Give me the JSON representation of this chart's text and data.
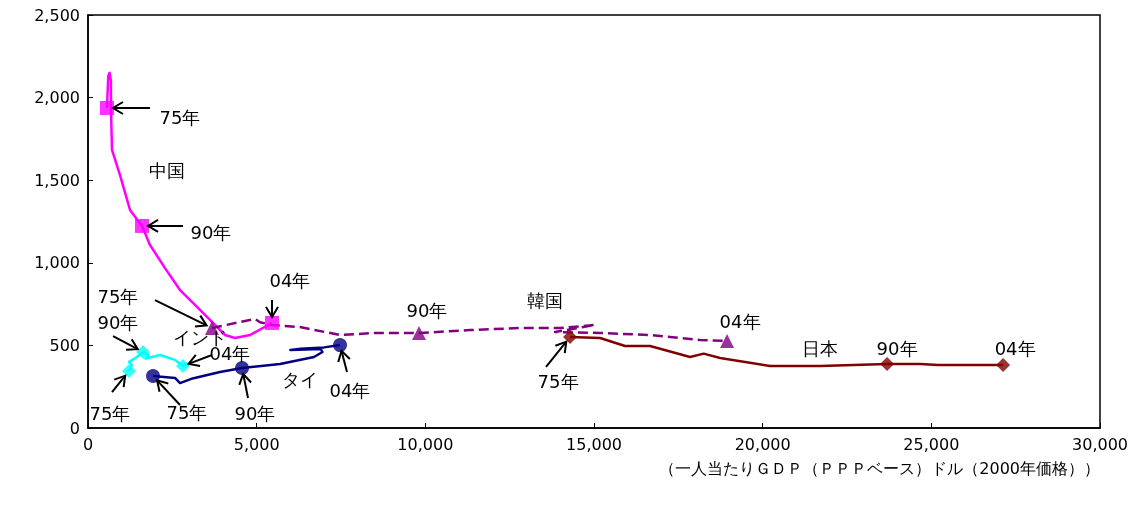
{
  "chart_data": {
    "type": "line",
    "xlabel": "（一人当たりＧＤＰ（ＰＰＰベース）ドル（2000年価格））",
    "xlim": [
      0,
      30000
    ],
    "ylim": [
      0,
      2500
    ],
    "xticks": [
      {
        "value": 0,
        "label": "0"
      },
      {
        "value": 5000,
        "label": "5,000"
      },
      {
        "value": 10000,
        "label": "10,000"
      },
      {
        "value": 15000,
        "label": "15,000"
      },
      {
        "value": 20000,
        "label": "20,000"
      },
      {
        "value": 25000,
        "label": "25,000"
      },
      {
        "value": 30000,
        "label": "30,000"
      }
    ],
    "yticks": [
      {
        "value": 0,
        "label": "0"
      },
      {
        "value": 500,
        "label": "500"
      },
      {
        "value": 1000,
        "label": "1,000"
      },
      {
        "value": 1500,
        "label": "1,500"
      },
      {
        "value": 2000,
        "label": "2,000"
      },
      {
        "value": 2500,
        "label": "2,500"
      }
    ],
    "grid": false,
    "series": [
      {
        "color": "#ff00ff",
        "line_style": "solid",
        "x": [
          563,
          600,
          640,
          680,
          680,
          711,
          949,
          1245,
          1601,
          1838,
          2283,
          2728,
          3172,
          3617,
          4062,
          4358,
          4803,
          5455
        ],
        "values": [
          1937,
          2130,
          2150,
          2100,
          1950,
          1683,
          1531,
          1320,
          1223,
          1108,
          968,
          835,
          745,
          654,
          563,
          545,
          563,
          636
        ]
      },
      {
        "color": "#800080",
        "line_style": "dashed",
        "x": [
          3676,
          4506,
          4950,
          5100,
          5455,
          6285,
          7471,
          8500,
          9813,
          11325,
          12808,
          13994,
          15031,
          13845,
          15180,
          16662,
          18145,
          18945
        ],
        "values": [
          605,
          642,
          660,
          640,
          624,
          611,
          563,
          575,
          575,
          593,
          605,
          605,
          624,
          581,
          575,
          563,
          533,
          527
        ]
      },
      {
        "color": "#800000",
        "line_style": "solid",
        "x": [
          14290,
          15180,
          15921,
          16662,
          17848,
          18250,
          18738,
          20221,
          21704,
          23688,
          24666,
          25200,
          26149,
          27127
        ],
        "values": [
          551,
          545,
          496,
          496,
          430,
          450,
          424,
          375,
          375,
          387,
          387,
          381,
          381,
          381
        ]
      },
      {
        "color": "#000080",
        "line_style": "solid",
        "x": [
          1927,
          2579,
          2728,
          3100,
          3913,
          4566,
          5693,
          6700,
          6950,
          6900,
          6000,
          6300,
          7000,
          7471
        ],
        "values": [
          315,
          303,
          272,
          300,
          339,
          363,
          387,
          430,
          460,
          478,
          472,
          480,
          488,
          502
        ]
      },
      {
        "color": "#00ffff",
        "line_style": "solid",
        "x": [
          1216,
          1300,
          1216,
          1450,
          1631,
          1800,
          1700,
          2135,
          2579,
          2816,
          2900,
          2816
        ],
        "values": [
          345,
          380,
          400,
          430,
          460,
          440,
          420,
          442,
          412,
          375,
          390,
          375
        ]
      },
      {
        "type": "scatter",
        "color": "#ff00ff",
        "marker": "square",
        "x": [
          563,
          1601,
          5455
        ],
        "values": [
          1937,
          1223,
          636
        ]
      },
      {
        "type": "scatter",
        "color": "#800080",
        "marker": "triangle",
        "x": [
          3676,
          9813,
          18945
        ],
        "values": [
          605,
          575,
          527
        ]
      },
      {
        "type": "scatter",
        "color": "#800000",
        "marker": "diamond",
        "x": [
          14290,
          23688,
          27127
        ],
        "values": [
          551,
          387,
          381
        ]
      },
      {
        "type": "scatter",
        "color": "#000080",
        "marker": "circle",
        "x": [
          1927,
          4566,
          7471
        ],
        "values": [
          315,
          363,
          502
        ]
      },
      {
        "type": "scatter",
        "color": "#00ffff",
        "marker": "diamond",
        "x": [
          1216,
          1631,
          2816
        ],
        "values": [
          345,
          460,
          375
        ]
      }
    ],
    "annotations": [
      {
        "text": "75年",
        "x": 563,
        "y": 1937
      },
      {
        "text": "中国",
        "x": 1097,
        "y": 1410
      },
      {
        "text": "90年",
        "x": 1601,
        "y": 1223
      },
      {
        "text": "04年",
        "x": 5455,
        "y": 636
      },
      {
        "text": "75年",
        "x": 3676,
        "y": 605
      },
      {
        "text": "90年",
        "x": 9813,
        "y": 575
      },
      {
        "text": "韓国",
        "x": 13550,
        "y": 605
      },
      {
        "text": "04年",
        "x": 18945,
        "y": 527
      },
      {
        "text": "75年",
        "x": 14290,
        "y": 551
      },
      {
        "text": "日本",
        "x": 21704,
        "y": 375
      },
      {
        "text": "90年",
        "x": 23688,
        "y": 387
      },
      {
        "text": "04年",
        "x": 27127,
        "y": 381
      },
      {
        "text": "75年",
        "x": 1927,
        "y": 315
      },
      {
        "text": "90年",
        "x": 4566,
        "y": 363
      },
      {
        "text": "タイ",
        "x": 6137,
        "y": 412
      },
      {
        "text": "04年",
        "x": 7471,
        "y": 502
      },
      {
        "text": "75年",
        "x": 1216,
        "y": 345
      },
      {
        "text": "90年",
        "x": 1631,
        "y": 460
      },
      {
        "text": "インド",
        "x": 2135,
        "y": 442
      },
      {
        "text": "04年",
        "x": 2816,
        "y": 375
      }
    ]
  }
}
